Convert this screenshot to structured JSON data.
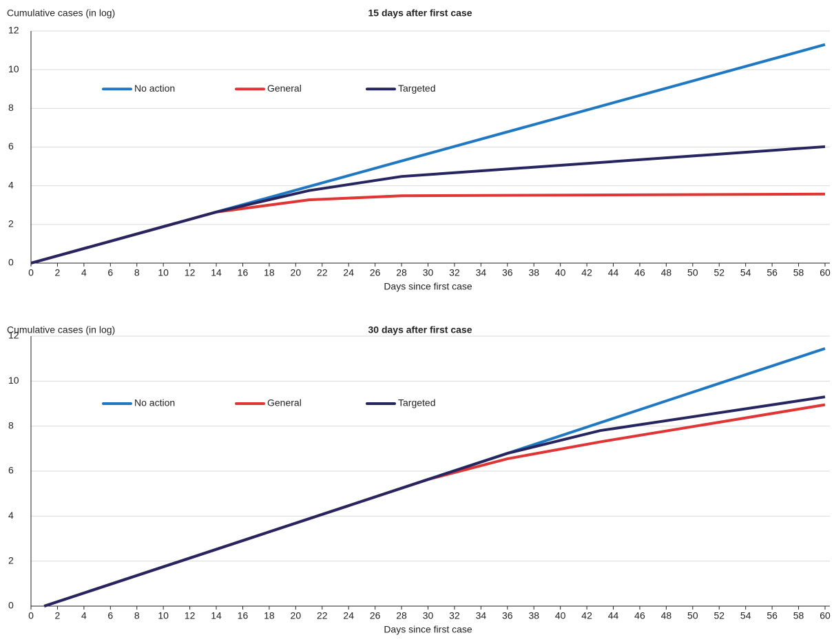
{
  "chart_data": [
    {
      "type": "line",
      "title": "15 days after first case",
      "y_label": "Cumulative cases (in log)",
      "x_label": "Days since first case",
      "x": [
        0,
        14,
        21,
        28,
        60
      ],
      "series": [
        {
          "name": "No action",
          "color": "#1f78c1",
          "values": [
            0,
            2.64,
            3.96,
            5.28,
            11.3
          ]
        },
        {
          "name": "General",
          "color": "#e03535",
          "values": [
            0,
            2.64,
            3.27,
            3.48,
            3.57
          ]
        },
        {
          "name": "Targeted",
          "color": "#27255f",
          "values": [
            0,
            2.64,
            3.75,
            4.48,
            6.02
          ]
        }
      ],
      "xlim": [
        0,
        60
      ],
      "xticks": [
        0,
        2,
        4,
        6,
        8,
        10,
        12,
        14,
        16,
        18,
        20,
        22,
        24,
        26,
        28,
        30,
        32,
        34,
        36,
        38,
        40,
        42,
        44,
        46,
        48,
        50,
        52,
        54,
        56,
        58,
        60
      ],
      "ylim": [
        0,
        12
      ],
      "yticks": [
        0,
        2,
        4,
        6,
        8,
        10,
        12
      ],
      "grid": true,
      "legend": "top-left"
    },
    {
      "type": "line",
      "title": "30 days after first case",
      "y_label": "Cumulative cases (in log)",
      "x_label": "Days since first case",
      "x": [
        1,
        30,
        36,
        43,
        60
      ],
      "series": [
        {
          "name": "No action",
          "color": "#1f78c1",
          "values": [
            0,
            5.63,
            6.79,
            8.15,
            11.45
          ]
        },
        {
          "name": "General",
          "color": "#e03535",
          "values": [
            0,
            5.63,
            6.55,
            7.3,
            8.95
          ]
        },
        {
          "name": "Targeted",
          "color": "#27255f",
          "values": [
            0,
            5.63,
            6.79,
            7.8,
            9.3
          ]
        }
      ],
      "xlim": [
        0,
        60
      ],
      "xticks": [
        0,
        2,
        4,
        6,
        8,
        10,
        12,
        14,
        16,
        18,
        20,
        22,
        24,
        26,
        28,
        30,
        32,
        34,
        36,
        38,
        40,
        42,
        44,
        46,
        48,
        50,
        52,
        54,
        56,
        58,
        60
      ],
      "ylim": [
        0,
        12
      ],
      "yticks": [
        0,
        2,
        4,
        6,
        8,
        10,
        12
      ],
      "grid": true,
      "legend": "top-left"
    }
  ]
}
